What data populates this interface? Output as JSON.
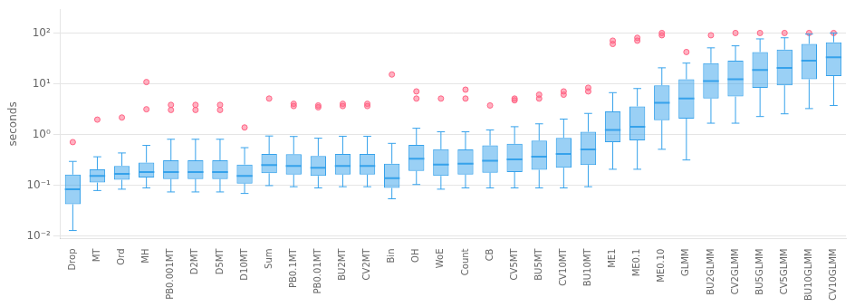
{
  "chart_data": {
    "type": "box",
    "ylabel": "seconds",
    "categories": [
      "Drop",
      "MT",
      "Ord",
      "MH",
      "PB0.001MT",
      "D2MT",
      "D5MT",
      "D10MT",
      "Sum",
      "PB0.1MT",
      "PB0.01MT",
      "BU2MT",
      "CV2MT",
      "Bin",
      "OH",
      "WoE",
      "Count",
      "CB",
      "CV5MT",
      "BU5MT",
      "CV10MT",
      "BU10MT",
      "ME1",
      "ME0.1",
      "ME0.10",
      "GLMM",
      "BU2GLMM",
      "CV2GLMM",
      "BU5GLMM",
      "CV5GLMM",
      "BU10GLMM",
      "CV10GLMM"
    ],
    "boxes": [
      {
        "whislo": 0.013,
        "q1": 0.043,
        "med": 0.085,
        "q3": 0.165,
        "whishi": 0.3,
        "fliers": [
          0.72
        ]
      },
      {
        "whislo": 0.08,
        "q1": 0.115,
        "med": 0.155,
        "q3": 0.21,
        "whishi": 0.37,
        "fliers": [
          2.0
        ]
      },
      {
        "whislo": 0.085,
        "q1": 0.13,
        "med": 0.17,
        "q3": 0.245,
        "whishi": 0.44,
        "fliers": [
          2.2
        ]
      },
      {
        "whislo": 0.09,
        "q1": 0.145,
        "med": 0.185,
        "q3": 0.285,
        "whishi": 0.62,
        "fliers": [
          11.0,
          3.2
        ]
      },
      {
        "whislo": 0.075,
        "q1": 0.135,
        "med": 0.185,
        "q3": 0.315,
        "whishi": 0.82,
        "fliers": [
          3.1,
          3.9
        ]
      },
      {
        "whislo": 0.075,
        "q1": 0.135,
        "med": 0.185,
        "q3": 0.315,
        "whishi": 0.82,
        "fliers": [
          3.1,
          3.9
        ]
      },
      {
        "whislo": 0.075,
        "q1": 0.135,
        "med": 0.185,
        "q3": 0.315,
        "whishi": 0.82,
        "fliers": [
          3.1,
          3.9
        ]
      },
      {
        "whislo": 0.07,
        "q1": 0.11,
        "med": 0.155,
        "q3": 0.26,
        "whishi": 0.56,
        "fliers": [
          1.4
        ]
      },
      {
        "whislo": 0.1,
        "q1": 0.175,
        "med": 0.255,
        "q3": 0.42,
        "whishi": 0.95,
        "fliers": [
          5.2
        ]
      },
      {
        "whislo": 0.095,
        "q1": 0.165,
        "med": 0.245,
        "q3": 0.415,
        "whishi": 0.93,
        "fliers": [
          3.7,
          4.1
        ]
      },
      {
        "whislo": 0.09,
        "q1": 0.155,
        "med": 0.225,
        "q3": 0.385,
        "whishi": 0.86,
        "fliers": [
          3.5,
          3.8
        ]
      },
      {
        "whislo": 0.095,
        "q1": 0.165,
        "med": 0.245,
        "q3": 0.42,
        "whishi": 0.94,
        "fliers": [
          3.7,
          4.1
        ]
      },
      {
        "whislo": 0.095,
        "q1": 0.165,
        "med": 0.245,
        "q3": 0.42,
        "whishi": 0.94,
        "fliers": [
          3.7,
          4.1
        ]
      },
      {
        "whislo": 0.055,
        "q1": 0.09,
        "med": 0.14,
        "q3": 0.27,
        "whishi": 0.68,
        "fliers": [
          15.5
        ]
      },
      {
        "whislo": 0.105,
        "q1": 0.195,
        "med": 0.34,
        "q3": 0.635,
        "whishi": 1.35,
        "fliers": [
          5.2,
          7.2
        ]
      },
      {
        "whislo": 0.085,
        "q1": 0.155,
        "med": 0.26,
        "q3": 0.52,
        "whishi": 1.15,
        "fliers": [
          5.2
        ]
      },
      {
        "whislo": 0.09,
        "q1": 0.165,
        "med": 0.27,
        "q3": 0.515,
        "whishi": 1.15,
        "fliers": [
          5.2,
          7.8
        ]
      },
      {
        "whislo": 0.09,
        "q1": 0.18,
        "med": 0.31,
        "q3": 0.62,
        "whishi": 1.25,
        "fliers": [
          3.8
        ]
      },
      {
        "whislo": 0.09,
        "q1": 0.185,
        "med": 0.33,
        "q3": 0.665,
        "whishi": 1.45,
        "fliers": [
          4.8,
          5.2
        ]
      },
      {
        "whislo": 0.09,
        "q1": 0.205,
        "med": 0.37,
        "q3": 0.775,
        "whishi": 1.65,
        "fliers": [
          5.2,
          6.2
        ]
      },
      {
        "whislo": 0.09,
        "q1": 0.225,
        "med": 0.42,
        "q3": 0.875,
        "whishi": 2.05,
        "fliers": [
          6.2,
          7.2
        ]
      },
      {
        "whislo": 0.095,
        "q1": 0.255,
        "med": 0.515,
        "q3": 1.15,
        "whishi": 2.65,
        "fliers": [
          7.2,
          8.5
        ]
      },
      {
        "whislo": 0.21,
        "q1": 0.72,
        "med": 1.25,
        "q3": 2.9,
        "whishi": 6.8,
        "fliers": [
          62.0,
          72.0
        ]
      },
      {
        "whislo": 0.21,
        "q1": 0.78,
        "med": 1.45,
        "q3": 3.65,
        "whishi": 8.2,
        "fliers": [
          72.0,
          82.0
        ]
      },
      {
        "whislo": 0.52,
        "q1": 1.95,
        "med": 4.3,
        "q3": 9.5,
        "whishi": 21.0,
        "fliers": [
          92.0,
          102.0
        ]
      },
      {
        "whislo": 0.32,
        "q1": 2.1,
        "med": 5.2,
        "q3": 12.5,
        "whishi": 26.0,
        "fliers": [
          43.0
        ]
      },
      {
        "whislo": 1.7,
        "q1": 5.2,
        "med": 11.5,
        "q3": 26.0,
        "whishi": 52.0,
        "fliers": [
          92.0
        ]
      },
      {
        "whislo": 1.7,
        "q1": 5.7,
        "med": 12.5,
        "q3": 29.0,
        "whishi": 57.0,
        "fliers": [
          102.0
        ]
      },
      {
        "whislo": 2.3,
        "q1": 8.5,
        "med": 19.0,
        "q3": 43.0,
        "whishi": 78.0,
        "fliers": [
          102.0
        ]
      },
      {
        "whislo": 2.6,
        "q1": 9.5,
        "med": 21.0,
        "q3": 48.0,
        "whishi": 82.0,
        "fliers": [
          102.0
        ]
      },
      {
        "whislo": 3.3,
        "q1": 12.5,
        "med": 29.0,
        "q3": 62.0,
        "whishi": 97.0,
        "fliers": [
          102.0
        ]
      },
      {
        "whislo": 3.8,
        "q1": 14.5,
        "med": 34.0,
        "q3": 67.0,
        "whishi": 102.0,
        "fliers": [
          102.0
        ]
      }
    ],
    "log": "y",
    "ylim": [
      0.009,
      300
    ],
    "yticks": [
      {
        "value": 0.01,
        "label": "10⁻²"
      },
      {
        "value": 0.1,
        "label": "10⁻¹"
      },
      {
        "value": 1,
        "label": "10⁰"
      },
      {
        "value": 10,
        "label": "10¹"
      },
      {
        "value": 100,
        "label": "10²"
      }
    ],
    "grid": true
  }
}
